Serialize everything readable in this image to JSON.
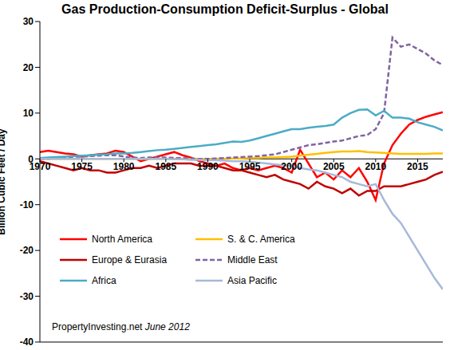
{
  "chart_data": {
    "type": "line",
    "title": "Gas Production-Consumption Deficit-Surplus - Global",
    "y_label": "Billion Cubic Feet / Day",
    "annotations": [
      "PropertyInvesting.net",
      "June 2012"
    ],
    "x": [
      1970,
      1971,
      1972,
      1973,
      1974,
      1975,
      1976,
      1977,
      1978,
      1979,
      1980,
      1981,
      1982,
      1983,
      1984,
      1985,
      1986,
      1987,
      1988,
      1989,
      1990,
      1991,
      1992,
      1993,
      1994,
      1995,
      1996,
      1997,
      1998,
      1999,
      2000,
      2001,
      2002,
      2003,
      2004,
      2005,
      2006,
      2007,
      2008,
      2009,
      2010,
      2011,
      2012,
      2013,
      2014,
      2015,
      2016,
      2017,
      2018
    ],
    "xlim": [
      1970,
      2018
    ],
    "xticks": [
      1970,
      1975,
      1980,
      1985,
      1990,
      1995,
      2000,
      2005,
      2010,
      2015
    ],
    "ylim": [
      -40,
      30
    ],
    "yticks": [
      -40,
      -30,
      -20,
      -10,
      0,
      10,
      20,
      30
    ],
    "grid": false,
    "legend": "lower left",
    "series": [
      {
        "name": "North America",
        "color": "#ff0000",
        "line_style": "solid",
        "values": [
          1.5,
          1.8,
          1.5,
          1.2,
          1,
          0.5,
          0.8,
          1,
          1.2,
          1.8,
          1.5,
          0.5,
          -0.5,
          0,
          0.5,
          1,
          1.5,
          0.8,
          0.3,
          -0.5,
          -1,
          -1.5,
          -1,
          -2,
          -2.5,
          -2,
          -2.5,
          -2,
          -1.5,
          -2,
          -3,
          2,
          -1,
          -4,
          -3,
          -4.5,
          -2.5,
          -4,
          -2,
          -5,
          -9,
          -1,
          3,
          5.5,
          7.5,
          8.5,
          9.2,
          9.7,
          10.2
        ]
      },
      {
        "name": "S. & C. America",
        "color": "#ffc000",
        "line_style": "solid",
        "values": [
          0,
          0,
          0,
          0,
          0,
          0,
          0,
          0,
          0,
          0,
          0,
          0,
          0,
          0,
          0,
          0,
          0,
          0,
          0,
          0,
          0,
          0,
          0,
          0.1,
          0.1,
          0.2,
          0.2,
          0.3,
          0.3,
          0.4,
          0.5,
          0.7,
          0.9,
          1.1,
          1.3,
          1.5,
          1.6,
          1.6,
          1.7,
          1.5,
          1.4,
          1.3,
          1.2,
          1.1,
          1.1,
          1.1,
          1.1,
          1.2,
          1.2
        ]
      },
      {
        "name": "Europe & Eurasia",
        "color": "#c00000",
        "line_style": "solid",
        "values": [
          -0.5,
          -1,
          -1.5,
          -2,
          -2.5,
          -2,
          -2.5,
          -2.5,
          -3,
          -3,
          -2.5,
          -2,
          -2,
          -1.5,
          -2,
          -1.5,
          -1,
          -1,
          -1,
          -1.5,
          -1.5,
          -1.5,
          -2,
          -2.5,
          -2.5,
          -3,
          -3.5,
          -4,
          -3.5,
          -4.5,
          -5,
          -5.5,
          -6.5,
          -5,
          -6,
          -6.5,
          -7.5,
          -6.5,
          -8,
          -7,
          -7,
          -6,
          -6,
          -6,
          -5.5,
          -5,
          -4.5,
          -3.5,
          -2.8
        ]
      },
      {
        "name": "Middle East",
        "color": "#8064a2",
        "line_style": "dashed",
        "values": [
          0,
          0,
          0.2,
          0.3,
          0.5,
          0.5,
          0.6,
          0.7,
          0.8,
          0.8,
          0.5,
          0.3,
          0.2,
          0.3,
          0.3,
          0.3,
          0.2,
          0.2,
          0.1,
          0,
          0,
          0.1,
          0.2,
          0.3,
          0.4,
          0.5,
          0.6,
          0.8,
          1,
          1.5,
          2,
          2.5,
          3,
          3.2,
          3.5,
          3.8,
          4,
          4.5,
          5,
          5.2,
          6.5,
          10,
          26.5,
          24.5,
          25,
          24,
          23,
          21.5,
          20.5
        ]
      },
      {
        "name": "Africa",
        "color": "#4bacc6",
        "line_style": "solid",
        "values": [
          0.2,
          0.3,
          0.4,
          0.5,
          0.6,
          0.7,
          0.8,
          0.9,
          1,
          1.2,
          1.2,
          1.3,
          1.5,
          1.7,
          1.9,
          2,
          2.2,
          2.4,
          2.6,
          2.8,
          3,
          3.2,
          3.5,
          3.8,
          3.7,
          4,
          4.5,
          5,
          5.5,
          6,
          6.5,
          6.5,
          6.8,
          7,
          7.2,
          7.5,
          9,
          10,
          10.7,
          10.8,
          9.5,
          10.5,
          9,
          9,
          8.8,
          8,
          7.5,
          7,
          6.2
        ]
      },
      {
        "name": "Asia Pacific",
        "color": "#a6b9d9",
        "line_style": "solid",
        "values": [
          0,
          0,
          0,
          0,
          0,
          0,
          0,
          0,
          0,
          0,
          0,
          0,
          0,
          0,
          0,
          0,
          -0.1,
          -0.1,
          -0.2,
          -0.2,
          -0.3,
          -0.3,
          -0.4,
          -0.5,
          -0.5,
          -0.6,
          -0.8,
          -1,
          -1.2,
          -1.4,
          -1.5,
          -2,
          -2.3,
          -2.5,
          -3,
          -3.5,
          -4,
          -5,
          -5.5,
          -6,
          -5.5,
          -9,
          -12,
          -14,
          -17,
          -20,
          -23,
          -26,
          -28.5
        ]
      }
    ]
  }
}
